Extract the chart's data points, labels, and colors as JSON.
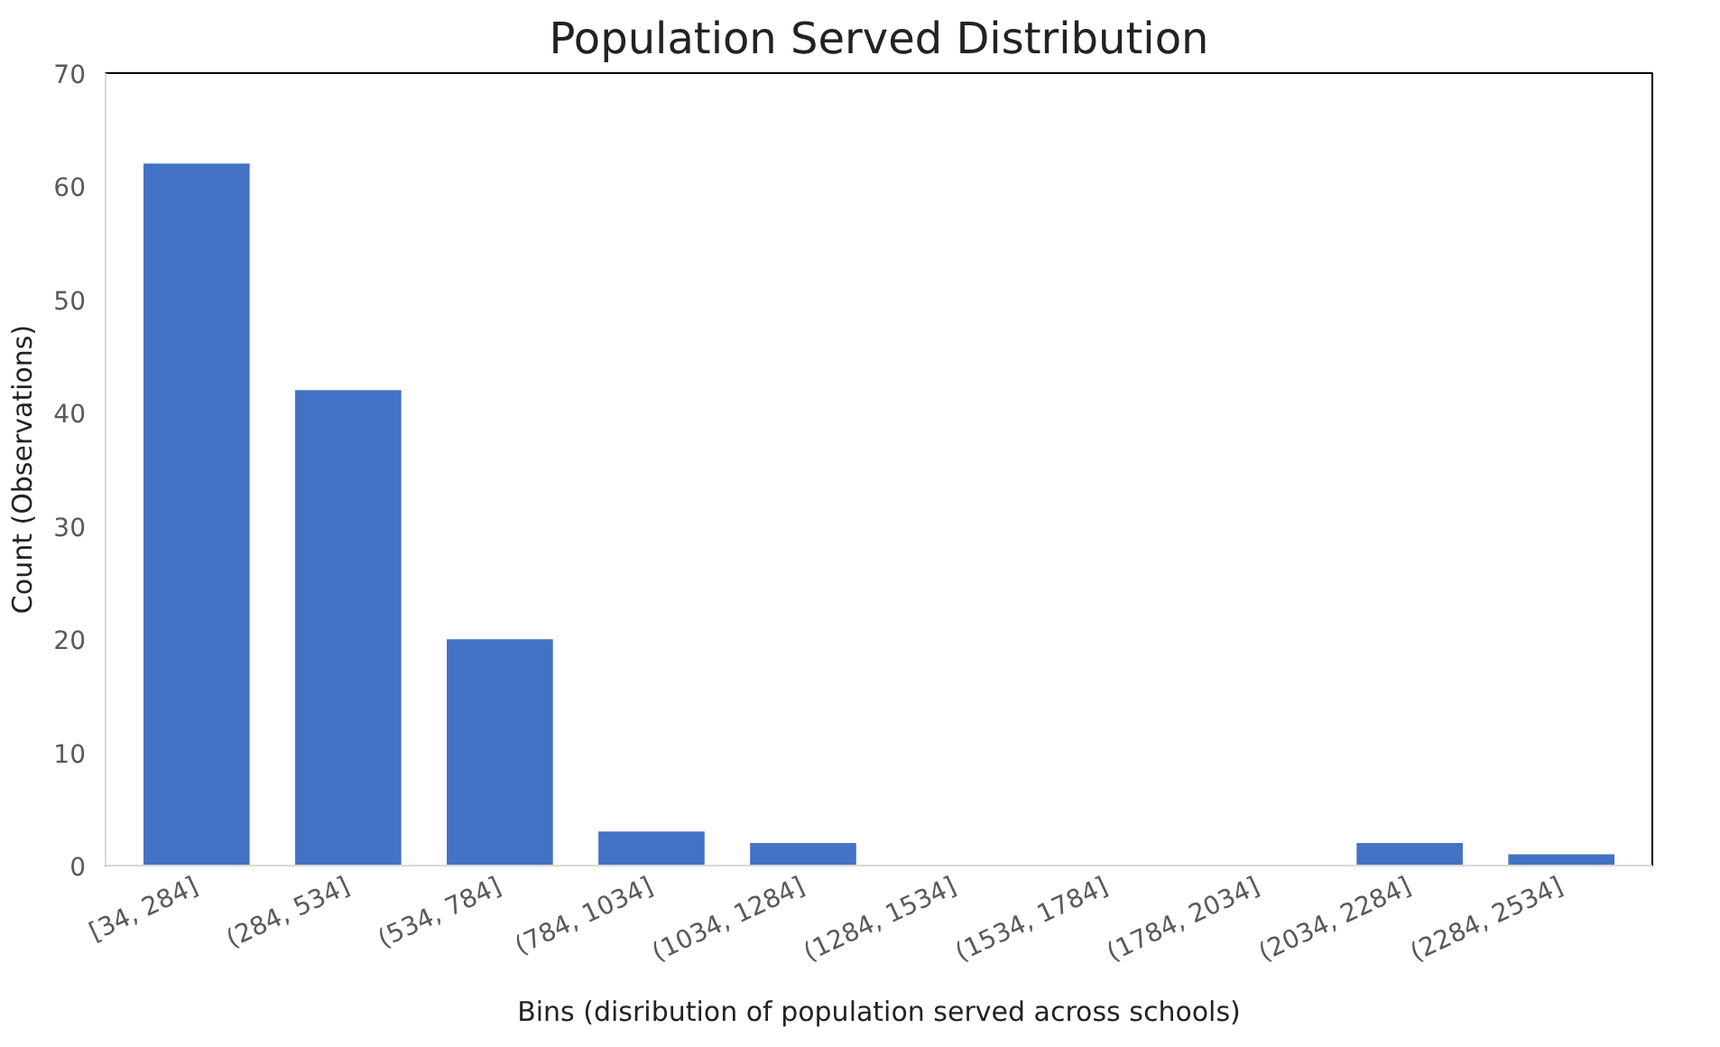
{
  "chart_data": {
    "type": "bar",
    "title": "Population Served Distribution",
    "xlabel": "Bins (disribution of population served across schools)",
    "ylabel": "Count (Observations)",
    "categories": [
      "[34, 284]",
      "(284, 534]",
      "(534, 784]",
      "(784, 1034]",
      "(1034, 1284]",
      "(1284, 1534]",
      "(1534, 1784]",
      "(1784, 2034]",
      "(2034, 2284]",
      "(2284, 2534]"
    ],
    "values": [
      62,
      42,
      20,
      3,
      2,
      0,
      0,
      0,
      2,
      1
    ],
    "color": "#4472c4",
    "ylim": [
      0,
      70
    ],
    "yticks": [
      0,
      10,
      20,
      30,
      40,
      50,
      60,
      70
    ],
    "grid": false
  }
}
